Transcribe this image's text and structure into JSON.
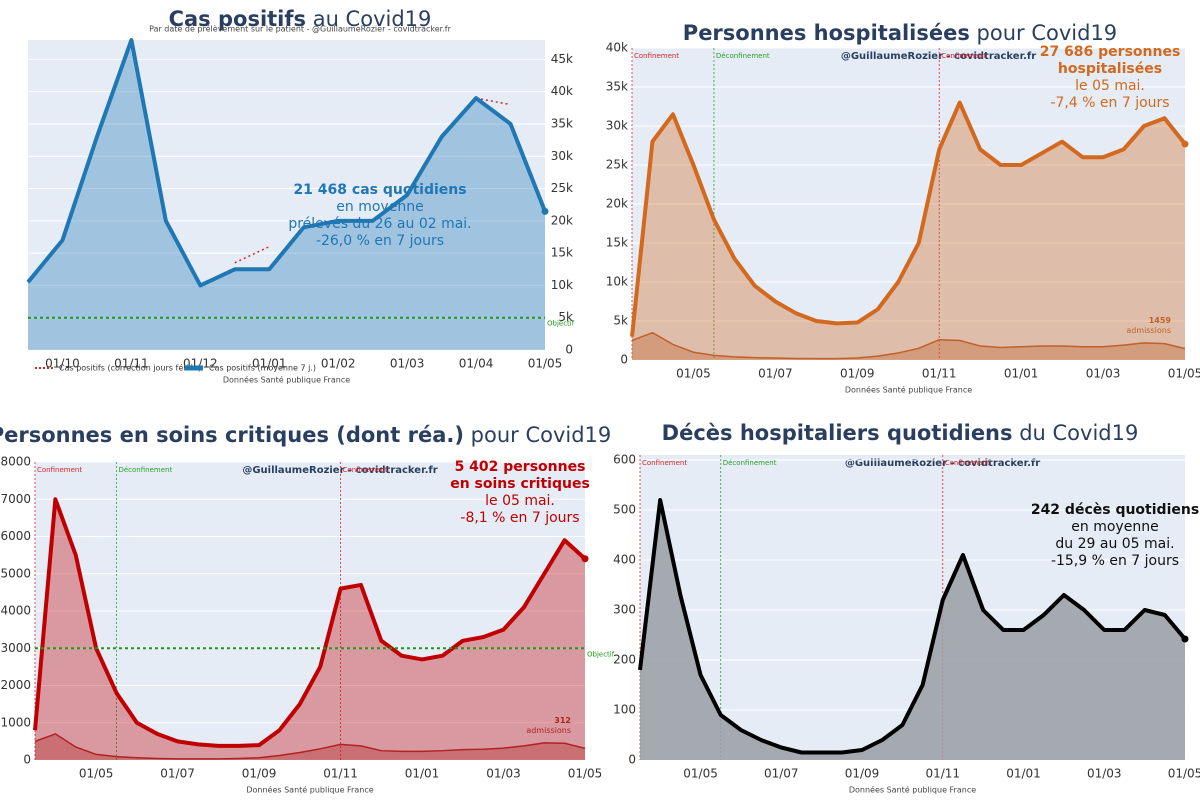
{
  "chart_data": [
    {
      "type": "area",
      "title_bold": "Cas positifs",
      "title_rest": " au Covid19",
      "subtitle": "Par date de prélèvement sur le patient - @GuillaumeRozier - covidtracker.fr",
      "source": "Données Santé publique France",
      "x": [
        "15/09",
        "01/10",
        "15/10",
        "01/11",
        "15/11",
        "01/12",
        "15/12",
        "01/01",
        "15/01",
        "01/02",
        "15/02",
        "01/03",
        "15/03",
        "01/04",
        "15/04",
        "01/05"
      ],
      "xticks": [
        "01/10",
        "01/11",
        "01/12",
        "01/01",
        "01/02",
        "01/03",
        "01/04",
        "01/05"
      ],
      "ylim": [
        0,
        48000
      ],
      "y_axis_side": "right",
      "grid": true,
      "yticks": [
        0,
        {
          "value": 5000,
          "label": "5k"
        },
        {
          "value": 10000,
          "label": "10k"
        },
        {
          "value": 15000,
          "label": "15k"
        },
        {
          "value": 20000,
          "label": "20k"
        },
        {
          "value": 25000,
          "label": "25k"
        },
        {
          "value": 30000,
          "label": "30k"
        },
        {
          "value": 35000,
          "label": "35k"
        },
        {
          "value": 40000,
          "label": "40k"
        },
        {
          "value": 45000,
          "label": "45k"
        }
      ],
      "objective": {
        "value": 5000,
        "label": "Objectif"
      },
      "series": [
        {
          "name": "Cas positifs (correction jours fériés)",
          "color": "#d62728",
          "style": "dotted",
          "values": [
            null,
            null,
            null,
            null,
            null,
            null,
            13500,
            16000,
            null,
            null,
            null,
            null,
            null,
            39000,
            38000,
            null
          ]
        },
        {
          "name": "Cas positifs (moyenne 7 j.)",
          "color": "#1f77b4",
          "fill": true,
          "values": [
            10500,
            17000,
            33000,
            48000,
            20000,
            10000,
            12500,
            12500,
            19000,
            20000,
            20000,
            24000,
            33000,
            39000,
            35000,
            21468
          ]
        }
      ],
      "legend": "bottom-left",
      "annotation": [
        "21 468 cas quotidiens",
        "en moyenne",
        "prélevés du 26 au 02 mai.",
        "-26,0 % en 7 jours"
      ]
    },
    {
      "type": "area",
      "title_bold": "Personnes hospitalisées",
      "title_rest": " pour Covid19",
      "watermark": "@GuillaumeRozier - covidtracker.fr",
      "source": "Données Santé publique France",
      "x": [
        "15/03",
        "01/04",
        "15/04",
        "01/05",
        "15/05",
        "01/06",
        "15/06",
        "01/07",
        "15/07",
        "01/08",
        "15/08",
        "01/09",
        "15/09",
        "01/10",
        "15/10",
        "01/11",
        "15/11",
        "01/12",
        "15/12",
        "01/01",
        "15/01",
        "01/02",
        "15/02",
        "01/03",
        "15/03",
        "01/04",
        "15/04",
        "01/05"
      ],
      "xticks": [
        "01/05",
        "01/07",
        "01/09",
        "01/11",
        "01/01",
        "01/03",
        "01/05"
      ],
      "ylim": [
        0,
        40000
      ],
      "y_axis_side": "left",
      "grid": true,
      "yticks": [
        0,
        {
          "value": 5000,
          "label": "5k"
        },
        {
          "value": 10000,
          "label": "10k"
        },
        {
          "value": 15000,
          "label": "15k"
        },
        {
          "value": 20000,
          "label": "20k"
        },
        {
          "value": 25000,
          "label": "25k"
        },
        {
          "value": 30000,
          "label": "30k"
        },
        {
          "value": 35000,
          "label": "35k"
        },
        {
          "value": 40000,
          "label": "40k"
        }
      ],
      "events": [
        {
          "label": "Confinement",
          "x": "15/03",
          "color": "#d62728"
        },
        {
          "label": "Déconfinement",
          "x": "15/05",
          "color": "#2ca02c"
        },
        {
          "label": "Confinement",
          "x": "01/11",
          "color": "#d62728"
        }
      ],
      "series": [
        {
          "color": "#d2691e",
          "fill": true,
          "values": [
            3000,
            28000,
            31500,
            25000,
            18000,
            13000,
            9500,
            7500,
            6000,
            5000,
            4700,
            4800,
            6500,
            10000,
            15000,
            27000,
            33000,
            27000,
            25000,
            25000,
            26500,
            28000,
            26000,
            26000,
            27000,
            30000,
            31000,
            27686
          ]
        },
        {
          "color": "#c0602a",
          "fill": true,
          "thin": true,
          "label_last": true,
          "values": [
            2500,
            3500,
            2000,
            1000,
            600,
            400,
            300,
            250,
            200,
            180,
            180,
            250,
            500,
            900,
            1500,
            2600,
            2500,
            1800,
            1600,
            1700,
            1800,
            1800,
            1700,
            1700,
            1900,
            2200,
            2100,
            1459
          ]
        }
      ],
      "last_label_suffix": "admissions",
      "annotation": [
        "27 686 personnes",
        "hospitalisées",
        "le 05 mai.",
        "-7,4 % en 7 jours"
      ]
    },
    {
      "type": "area",
      "title_bold": "Personnes en soins critiques (dont réa.)",
      "title_rest": " pour Covid19",
      "watermark": "@GuillaumeRozier - covidtracker.fr",
      "source": "Données Santé publique France",
      "x": [
        "15/03",
        "01/04",
        "15/04",
        "01/05",
        "15/05",
        "01/06",
        "15/06",
        "01/07",
        "15/07",
        "01/08",
        "15/08",
        "01/09",
        "15/09",
        "01/10",
        "15/10",
        "01/11",
        "15/11",
        "01/12",
        "15/12",
        "01/01",
        "15/01",
        "01/02",
        "15/02",
        "01/03",
        "15/03",
        "01/04",
        "15/04",
        "01/05"
      ],
      "xticks": [
        "01/05",
        "01/07",
        "01/09",
        "01/11",
        "01/01",
        "01/03",
        "01/05"
      ],
      "ylim": [
        0,
        8000
      ],
      "y_axis_side": "left",
      "grid": true,
      "yticks": [
        0,
        1000,
        2000,
        3000,
        4000,
        5000,
        6000,
        7000,
        8000
      ],
      "objective": {
        "value": 3000,
        "label": "Objectif"
      },
      "events": [
        {
          "label": "Confinement",
          "x": "15/03",
          "color": "#d62728"
        },
        {
          "label": "Déconfinement",
          "x": "15/05",
          "color": "#2ca02c"
        },
        {
          "label": "Confinement",
          "x": "01/11",
          "color": "#d62728"
        }
      ],
      "series": [
        {
          "color": "#c00000",
          "fill": true,
          "values": [
            800,
            7000,
            5500,
            3000,
            1800,
            1000,
            700,
            500,
            420,
            380,
            380,
            400,
            800,
            1500,
            2500,
            4600,
            4700,
            3200,
            2800,
            2700,
            2800,
            3200,
            3300,
            3500,
            4100,
            5000,
            5900,
            5402
          ]
        },
        {
          "color": "#b22222",
          "fill": true,
          "thin": true,
          "label_last": true,
          "values": [
            500,
            700,
            350,
            150,
            90,
            60,
            40,
            30,
            30,
            30,
            40,
            60,
            120,
            200,
            300,
            420,
            380,
            250,
            230,
            230,
            250,
            280,
            290,
            320,
            380,
            460,
            450,
            312
          ]
        }
      ],
      "last_label_suffix": "admissions",
      "annotation": [
        "5 402 personnes",
        "en soins critiques",
        "le 05 mai.",
        "-8,1 % en 7 jours"
      ]
    },
    {
      "type": "area",
      "title_bold": "Décès hospitaliers quotidiens",
      "title_rest": " du Covid19",
      "watermark": "@GuillaumeRozier - covidtracker.fr",
      "source": "Données Santé publique France",
      "x": [
        "15/03",
        "01/04",
        "15/04",
        "01/05",
        "15/05",
        "01/06",
        "15/06",
        "01/07",
        "15/07",
        "01/08",
        "15/08",
        "01/09",
        "15/09",
        "01/10",
        "15/10",
        "01/11",
        "15/11",
        "01/12",
        "15/12",
        "01/01",
        "15/01",
        "01/02",
        "15/02",
        "01/03",
        "15/03",
        "01/04",
        "15/04",
        "01/05"
      ],
      "xticks": [
        "01/05",
        "01/07",
        "01/09",
        "01/11",
        "01/01",
        "01/03",
        "01/05"
      ],
      "ylim": [
        0,
        610
      ],
      "y_axis_side": "left",
      "grid": true,
      "yticks": [
        0,
        100,
        200,
        300,
        400,
        500,
        600
      ],
      "events": [
        {
          "label": "Confinement",
          "x": "15/03",
          "color": "#d62728"
        },
        {
          "label": "Déconfinement",
          "x": "15/05",
          "color": "#2ca02c"
        },
        {
          "label": "Confinement",
          "x": "01/11",
          "color": "#d62728"
        }
      ],
      "series": [
        {
          "color": "#000000",
          "fill": true,
          "fill_color": "#9a9ea3",
          "values": [
            180,
            520,
            330,
            170,
            90,
            60,
            40,
            25,
            15,
            15,
            15,
            20,
            40,
            70,
            150,
            320,
            410,
            300,
            260,
            260,
            290,
            330,
            300,
            260,
            260,
            300,
            290,
            242
          ]
        }
      ],
      "annotation": [
        "242 décès quotidiens",
        "en moyenne",
        "du 29 au 05 mai.",
        "-15,9 % en 7 jours"
      ]
    }
  ]
}
